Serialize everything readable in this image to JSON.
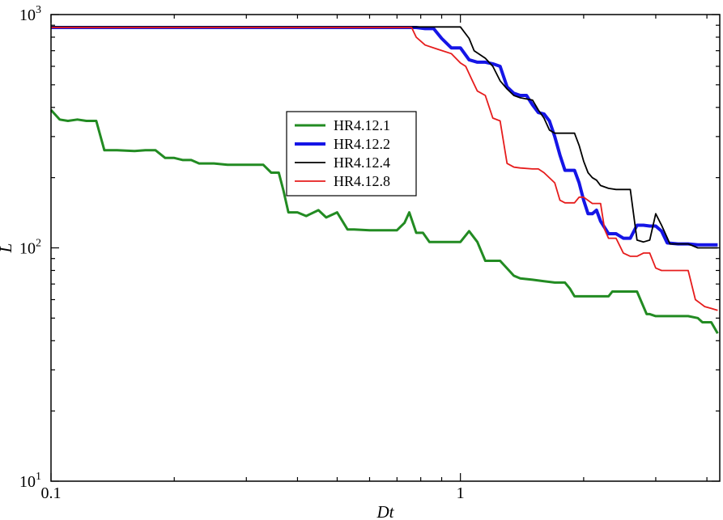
{
  "chart_data": {
    "type": "line",
    "title": "",
    "xlabel": "Dt",
    "ylabel": "L",
    "x_scale": "log",
    "y_scale": "log",
    "xlim": [
      0.1,
      4.3
    ],
    "ylim": [
      10,
      1000
    ],
    "x_ticks": [
      {
        "value": 0.1,
        "label": "0.1"
      },
      {
        "value": 1,
        "label": "1"
      }
    ],
    "y_ticks": [
      {
        "value": 10,
        "base": "10",
        "exp": "1"
      },
      {
        "value": 100,
        "base": "10",
        "exp": "2"
      },
      {
        "value": 1000,
        "base": "10",
        "exp": "3"
      }
    ],
    "grid": false,
    "legend_position": "center-left",
    "series": [
      {
        "name": "HR4.12.1",
        "color": "#228B22",
        "width": 3,
        "points": [
          [
            0.1,
            390
          ],
          [
            0.105,
            355
          ],
          [
            0.11,
            350
          ],
          [
            0.116,
            355
          ],
          [
            0.122,
            350
          ],
          [
            0.129,
            350
          ],
          [
            0.135,
            262
          ],
          [
            0.145,
            262
          ],
          [
            0.16,
            260
          ],
          [
            0.17,
            262
          ],
          [
            0.18,
            262
          ],
          [
            0.19,
            243
          ],
          [
            0.2,
            243
          ],
          [
            0.21,
            238
          ],
          [
            0.22,
            238
          ],
          [
            0.23,
            230
          ],
          [
            0.25,
            230
          ],
          [
            0.27,
            227
          ],
          [
            0.3,
            227
          ],
          [
            0.33,
            227
          ],
          [
            0.345,
            210
          ],
          [
            0.36,
            210
          ],
          [
            0.37,
            175
          ],
          [
            0.38,
            142
          ],
          [
            0.4,
            142
          ],
          [
            0.42,
            137
          ],
          [
            0.45,
            145
          ],
          [
            0.47,
            135
          ],
          [
            0.5,
            142
          ],
          [
            0.53,
            120
          ],
          [
            0.55,
            120
          ],
          [
            0.6,
            119
          ],
          [
            0.65,
            119
          ],
          [
            0.7,
            119
          ],
          [
            0.73,
            128
          ],
          [
            0.75,
            142
          ],
          [
            0.78,
            116
          ],
          [
            0.81,
            116
          ],
          [
            0.84,
            106
          ],
          [
            0.9,
            106
          ],
          [
            0.95,
            106
          ],
          [
            1.0,
            106
          ],
          [
            1.05,
            118
          ],
          [
            1.1,
            106
          ],
          [
            1.15,
            88
          ],
          [
            1.25,
            88
          ],
          [
            1.35,
            76
          ],
          [
            1.4,
            74
          ],
          [
            1.5,
            73
          ],
          [
            1.6,
            72
          ],
          [
            1.7,
            71
          ],
          [
            1.8,
            71
          ],
          [
            1.85,
            67
          ],
          [
            1.9,
            62
          ],
          [
            2.0,
            62
          ],
          [
            2.1,
            62
          ],
          [
            2.2,
            62
          ],
          [
            2.3,
            62
          ],
          [
            2.35,
            65
          ],
          [
            2.45,
            65
          ],
          [
            2.6,
            65
          ],
          [
            2.7,
            65
          ],
          [
            2.85,
            52
          ],
          [
            2.9,
            52
          ],
          [
            3.0,
            51
          ],
          [
            3.2,
            51
          ],
          [
            3.4,
            51
          ],
          [
            3.6,
            51
          ],
          [
            3.8,
            50
          ],
          [
            3.9,
            48
          ],
          [
            4.0,
            48
          ],
          [
            4.1,
            48
          ],
          [
            4.25,
            43
          ]
        ]
      },
      {
        "name": "HR4.12.2",
        "color": "#1515E6",
        "width": 4,
        "points": [
          [
            0.1,
            880
          ],
          [
            0.78,
            880
          ],
          [
            0.82,
            870
          ],
          [
            0.86,
            870
          ],
          [
            0.9,
            790
          ],
          [
            0.95,
            720
          ],
          [
            1.0,
            720
          ],
          [
            1.05,
            640
          ],
          [
            1.1,
            625
          ],
          [
            1.15,
            625
          ],
          [
            1.2,
            615
          ],
          [
            1.25,
            600
          ],
          [
            1.3,
            490
          ],
          [
            1.35,
            460
          ],
          [
            1.4,
            450
          ],
          [
            1.45,
            450
          ],
          [
            1.5,
            410
          ],
          [
            1.55,
            380
          ],
          [
            1.6,
            375
          ],
          [
            1.65,
            350
          ],
          [
            1.7,
            300
          ],
          [
            1.75,
            250
          ],
          [
            1.8,
            215
          ],
          [
            1.85,
            215
          ],
          [
            1.9,
            215
          ],
          [
            1.95,
            190
          ],
          [
            2.0,
            160
          ],
          [
            2.05,
            140
          ],
          [
            2.1,
            140
          ],
          [
            2.15,
            145
          ],
          [
            2.2,
            130
          ],
          [
            2.3,
            115
          ],
          [
            2.4,
            115
          ],
          [
            2.5,
            110
          ],
          [
            2.6,
            110
          ],
          [
            2.7,
            125
          ],
          [
            2.8,
            125
          ],
          [
            2.9,
            124
          ],
          [
            3.0,
            124
          ],
          [
            3.1,
            118
          ],
          [
            3.2,
            105
          ],
          [
            3.4,
            104
          ],
          [
            3.6,
            104
          ],
          [
            3.8,
            103
          ],
          [
            4.0,
            103
          ],
          [
            4.25,
            103
          ]
        ]
      },
      {
        "name": "HR4.12.4",
        "color": "#000000",
        "width": 1.8,
        "points": [
          [
            0.1,
            885
          ],
          [
            0.9,
            885
          ],
          [
            1.0,
            885
          ],
          [
            1.05,
            790
          ],
          [
            1.08,
            700
          ],
          [
            1.15,
            650
          ],
          [
            1.2,
            600
          ],
          [
            1.25,
            520
          ],
          [
            1.3,
            480
          ],
          [
            1.35,
            450
          ],
          [
            1.4,
            440
          ],
          [
            1.5,
            430
          ],
          [
            1.55,
            390
          ],
          [
            1.6,
            360
          ],
          [
            1.65,
            320
          ],
          [
            1.7,
            310
          ],
          [
            1.8,
            310
          ],
          [
            1.9,
            310
          ],
          [
            1.95,
            275
          ],
          [
            2.0,
            235
          ],
          [
            2.05,
            210
          ],
          [
            2.1,
            200
          ],
          [
            2.15,
            195
          ],
          [
            2.2,
            185
          ],
          [
            2.3,
            180
          ],
          [
            2.4,
            178
          ],
          [
            2.5,
            178
          ],
          [
            2.6,
            178
          ],
          [
            2.7,
            108
          ],
          [
            2.8,
            106
          ],
          [
            2.9,
            108
          ],
          [
            3.0,
            140
          ],
          [
            3.1,
            125
          ],
          [
            3.25,
            104
          ],
          [
            3.4,
            104
          ],
          [
            3.6,
            104
          ],
          [
            3.8,
            100
          ],
          [
            4.0,
            100
          ],
          [
            4.25,
            100
          ]
        ]
      },
      {
        "name": "HR4.12.8",
        "color": "#E61C1C",
        "width": 1.8,
        "points": [
          [
            0.1,
            880
          ],
          [
            0.76,
            880
          ],
          [
            0.78,
            800
          ],
          [
            0.82,
            740
          ],
          [
            0.88,
            710
          ],
          [
            0.95,
            680
          ],
          [
            1.0,
            620
          ],
          [
            1.03,
            600
          ],
          [
            1.07,
            520
          ],
          [
            1.1,
            470
          ],
          [
            1.15,
            450
          ],
          [
            1.2,
            360
          ],
          [
            1.25,
            350
          ],
          [
            1.3,
            230
          ],
          [
            1.35,
            222
          ],
          [
            1.4,
            220
          ],
          [
            1.5,
            218
          ],
          [
            1.55,
            218
          ],
          [
            1.6,
            210
          ],
          [
            1.7,
            190
          ],
          [
            1.75,
            160
          ],
          [
            1.8,
            156
          ],
          [
            1.9,
            156
          ],
          [
            1.95,
            165
          ],
          [
            2.0,
            165
          ],
          [
            2.1,
            155
          ],
          [
            2.2,
            155
          ],
          [
            2.25,
            120
          ],
          [
            2.3,
            110
          ],
          [
            2.4,
            110
          ],
          [
            2.5,
            95
          ],
          [
            2.6,
            92
          ],
          [
            2.7,
            92
          ],
          [
            2.8,
            95
          ],
          [
            2.9,
            95
          ],
          [
            3.0,
            82
          ],
          [
            3.1,
            80
          ],
          [
            3.2,
            80
          ],
          [
            3.4,
            80
          ],
          [
            3.6,
            80
          ],
          [
            3.75,
            60
          ],
          [
            3.85,
            58
          ],
          [
            3.95,
            56
          ],
          [
            4.1,
            55
          ],
          [
            4.25,
            54
          ]
        ]
      }
    ]
  }
}
